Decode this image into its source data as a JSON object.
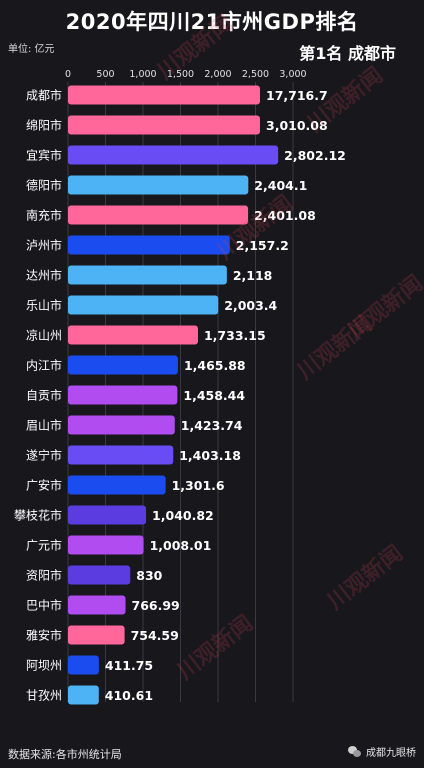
{
  "header": {
    "title": "2020年四川21市州GDP排名",
    "unit": "单位: 亿元",
    "rank_label": "第1名 成都市"
  },
  "footer": {
    "source": "数据来源:各市州统计局",
    "brand": "成都九眼桥"
  },
  "watermark": "川观新闻",
  "colors": {
    "background": "#17171c",
    "pink": "#ff6699",
    "purple": "#6a4cf5",
    "light_blue": "#4db3f5",
    "blue": "#1a4cf0",
    "violet": "#b04cf0",
    "indigo": "#5a3ce0"
  },
  "chart_data": {
    "type": "bar",
    "orientation": "horizontal",
    "title": "2020年四川21市州GDP排名",
    "unit": "亿元",
    "x_ticks": [
      "0",
      "500",
      "1,000",
      "1,500",
      "2,000",
      "2,500",
      "3,000"
    ],
    "xlim": [
      0,
      3000
    ],
    "grid": true,
    "categories": [
      "成都市",
      "绵阳市",
      "宜宾市",
      "德阳市",
      "南充市",
      "泸州市",
      "达州市",
      "乐山市",
      "凉山州",
      "内江市",
      "自贡市",
      "眉山市",
      "遂宁市",
      "广安市",
      "攀枝花市",
      "广元市",
      "资阳市",
      "巴中市",
      "雅安市",
      "阿坝州",
      "甘孜州"
    ],
    "values": [
      17716.7,
      3010.08,
      2802.12,
      2404.1,
      2401.08,
      2157.2,
      2118,
      2003.4,
      1733.15,
      1465.88,
      1458.44,
      1423.74,
      1403.18,
      1301.6,
      1040.82,
      1008.01,
      830,
      766.99,
      754.59,
      411.75,
      410.61
    ],
    "value_labels": [
      "17,716.7",
      "3,010.08",
      "2,802.12",
      "2,404.1",
      "2,401.08",
      "2,157.2",
      "2,118",
      "2,003.4",
      "1,733.15",
      "1,465.88",
      "1,458.44",
      "1,423.74",
      "1,403.18",
      "1,301.6",
      "1,040.82",
      "1,008.01",
      "830",
      "766.99",
      "754.59",
      "411.75",
      "410.61"
    ],
    "bar_colors": [
      "#ff6699",
      "#ff6699",
      "#6a4cf5",
      "#4db3f5",
      "#ff6699",
      "#1a4cf0",
      "#4db3f5",
      "#4db3f5",
      "#ff6699",
      "#1a4cf0",
      "#b04cf0",
      "#b04cf0",
      "#6a4cf5",
      "#1a4cf0",
      "#5a3ce0",
      "#b04cf0",
      "#5a3ce0",
      "#b04cf0",
      "#ff6699",
      "#1a4cf0",
      "#4db3f5"
    ]
  }
}
